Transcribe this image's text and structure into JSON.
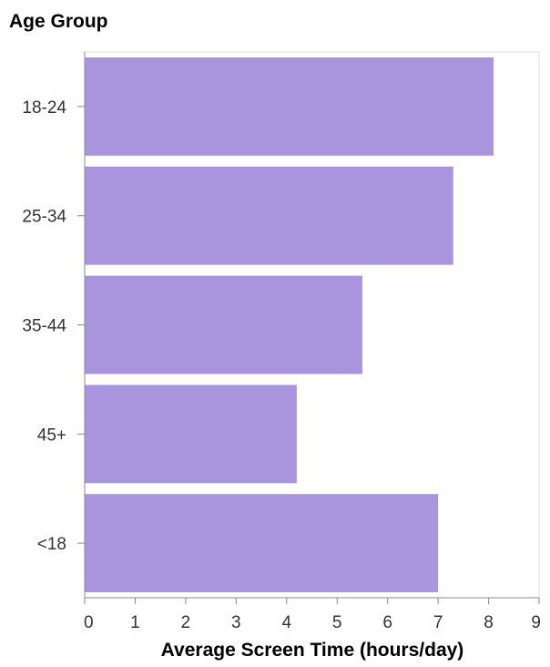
{
  "chart_data": {
    "type": "bar",
    "orientation": "horizontal",
    "categories": [
      "18-24",
      "25-34",
      "35-44",
      "45+",
      "<18"
    ],
    "values": [
      8.1,
      7.3,
      5.5,
      4.2,
      7.0
    ],
    "xlabel": "Average Screen Time (hours/day)",
    "ylabel": "Age Group",
    "xlim": [
      0,
      9
    ],
    "x_ticks": [
      "0",
      "1",
      "2",
      "3",
      "4",
      "5",
      "6",
      "7",
      "8",
      "9"
    ],
    "grid": false,
    "bar_color": "#a895dd"
  }
}
